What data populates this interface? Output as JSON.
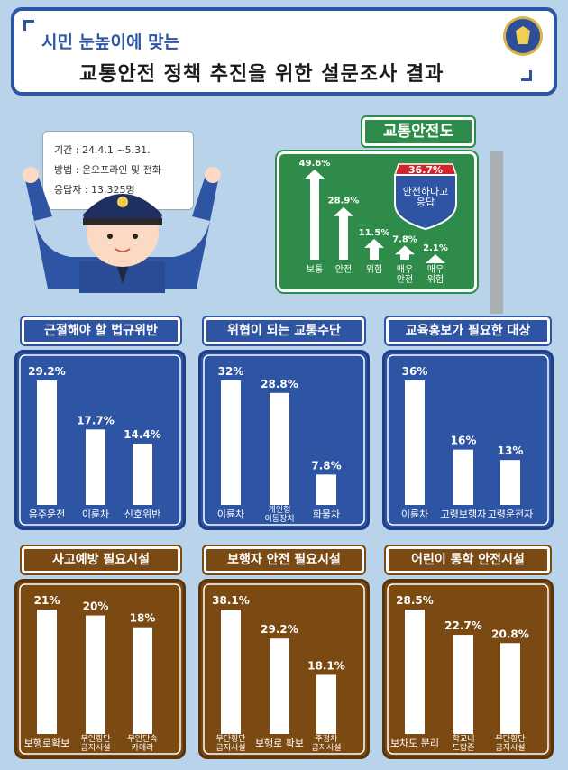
{
  "header": {
    "subtitle": "시민 눈높이에 맞는",
    "title": "교통안전 정책 추진을 위한 설문조사 결과"
  },
  "survey": {
    "period": "기간 : 24.4.1.~5.31.",
    "method": "방법 : 온오프라인 및 전화",
    "respondents": "응답자 : 13,325명"
  },
  "colors": {
    "blue": "#2e55a4",
    "brown": "#7b4a12",
    "green": "#2e8b4a",
    "shield_red": "#d0262b"
  },
  "chart_data": [
    {
      "type": "bar",
      "title": "교통안전도",
      "categories": [
        "보통",
        "안전",
        "위험",
        "매우\n안전",
        "매우\n위험"
      ],
      "values": [
        49.6,
        28.9,
        11.5,
        7.8,
        2.1
      ],
      "value_labels": [
        "49.6%",
        "28.9%",
        "11.5%",
        "7.8%",
        "2.1%"
      ],
      "callout_value": "36.7%",
      "callout_text": "안전하다고\n응답"
    },
    {
      "type": "bar",
      "title": "근절해야 할 법규위반",
      "categories": [
        "음주운전",
        "이륜차",
        "신호위반"
      ],
      "values": [
        29.2,
        17.7,
        14.4
      ],
      "value_labels": [
        "29.2%",
        "17.7%",
        "14.4%"
      ]
    },
    {
      "type": "bar",
      "title": "위협이 되는 교통수단",
      "categories": [
        "이륜차",
        "개인형\n이동장치",
        "화물차"
      ],
      "values": [
        32,
        28.8,
        7.8
      ],
      "value_labels": [
        "32%",
        "28.8%",
        "7.8%"
      ]
    },
    {
      "type": "bar",
      "title": "교육홍보가 필요한 대상",
      "categories": [
        "이륜차",
        "고령보행자",
        "고령운전자"
      ],
      "values": [
        36,
        16,
        13
      ],
      "value_labels": [
        "36%",
        "16%",
        "13%"
      ]
    },
    {
      "type": "bar",
      "title": "사고예방 필요시설",
      "categories": [
        "보행로확보",
        "무인횡단\n금지시설",
        "무인단속\n카메라"
      ],
      "values": [
        21,
        20,
        18
      ],
      "value_labels": [
        "21%",
        "20%",
        "18%"
      ]
    },
    {
      "type": "bar",
      "title": "보행자 안전 필요시설",
      "categories": [
        "무단횡단\n금지시설",
        "보행로 확보",
        "주정차\n금지시설"
      ],
      "values": [
        38.1,
        29.2,
        18.1
      ],
      "value_labels": [
        "38.1%",
        "29.2%",
        "18.1%"
      ]
    },
    {
      "type": "bar",
      "title": "어린이 통학 안전시설",
      "categories": [
        "보차도 분리",
        "학교내\n드랍존",
        "무단횡단\n금지시설"
      ],
      "values": [
        28.5,
        22.7,
        20.8
      ],
      "value_labels": [
        "28.5%",
        "22.7%",
        "20.8%"
      ]
    }
  ]
}
